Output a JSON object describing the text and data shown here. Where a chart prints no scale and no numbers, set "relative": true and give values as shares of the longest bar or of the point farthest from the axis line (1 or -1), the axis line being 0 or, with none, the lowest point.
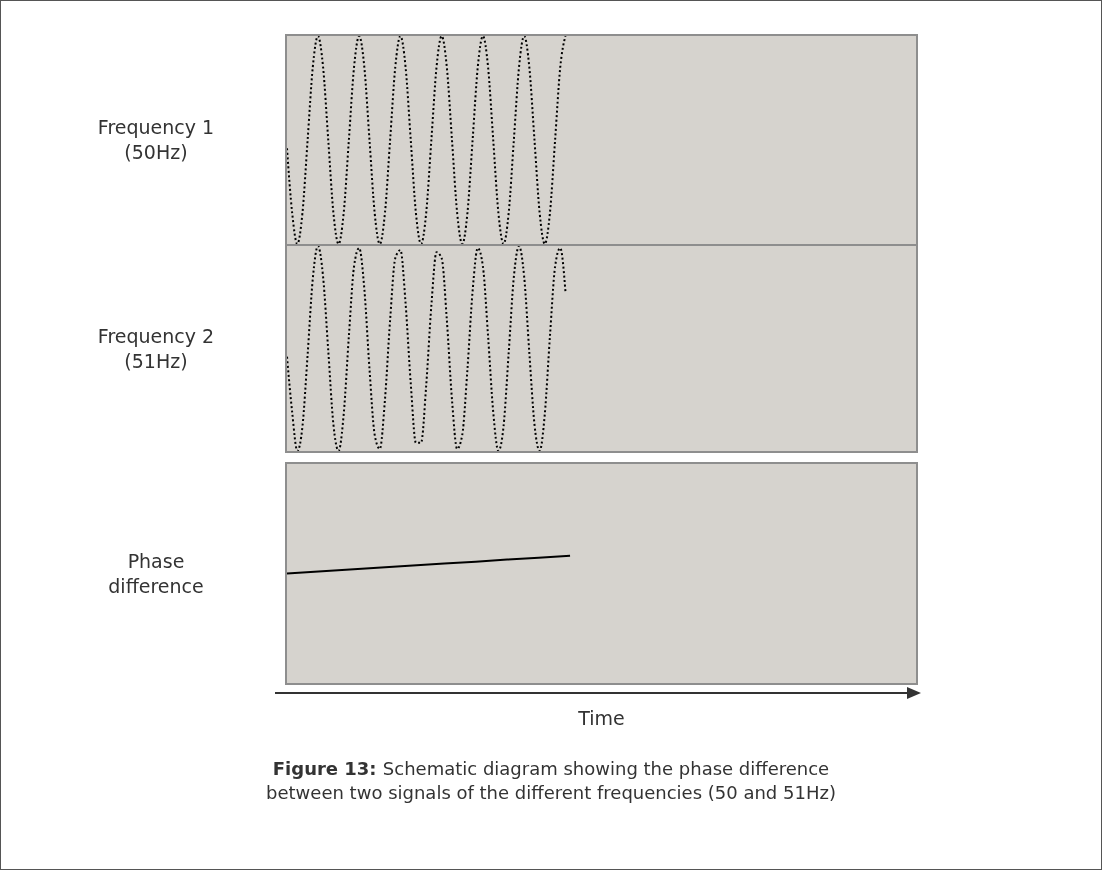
{
  "chart_data": [
    {
      "type": "line",
      "relative": true,
      "ylabel": "Frequency 1 (50Hz)",
      "color": "#000000",
      "line_style": "dotted",
      "categories": [
        null,
        null,
        null,
        null,
        null,
        null,
        null,
        null,
        null,
        null,
        null,
        null,
        null,
        null,
        null,
        null,
        null,
        null,
        null,
        null,
        null,
        null,
        null,
        null,
        null,
        null,
        null,
        null,
        null,
        null,
        null,
        null,
        null,
        null,
        null,
        null,
        null,
        null,
        null,
        null,
        null,
        null,
        null,
        null,
        null,
        null,
        null,
        null,
        null,
        null,
        null,
        null,
        null,
        null,
        null,
        null,
        null,
        null,
        null,
        null,
        null,
        null,
        null,
        null,
        null,
        null,
        null,
        null,
        null,
        null,
        null,
        null,
        null,
        null,
        null,
        null,
        null,
        null,
        null,
        null,
        null,
        null,
        null,
        null,
        null,
        null,
        null,
        null,
        null,
        null,
        null,
        null,
        null,
        null,
        null,
        null,
        null,
        null,
        null,
        null,
        null,
        null,
        null,
        null,
        null,
        null,
        null,
        null,
        null,
        null,
        null,
        null,
        null,
        null,
        null,
        null,
        null,
        null,
        null,
        null,
        null,
        null,
        null
      ],
      "values": [
        0.46,
        0.15,
        0,
        0.15,
        0.5,
        0.85,
        1,
        0.85,
        0.5,
        0.15,
        0,
        0.15,
        0.5,
        0.85,
        1,
        0.85,
        0.5,
        0.15,
        0,
        0.15,
        0.5,
        0.85,
        1,
        0.85,
        0.5,
        0.15,
        0,
        0.15,
        0.5,
        0.85,
        1,
        0.85,
        0.5,
        0.15,
        0,
        0.15,
        0.5,
        0.85,
        1,
        0.85,
        0.5,
        0.15,
        0,
        0.15,
        0.5,
        0.85,
        1,
        0.85,
        0.5,
        0.15,
        0,
        0.15,
        0.5,
        0.85,
        1,
        null,
        null,
        null,
        null,
        null,
        null,
        null,
        null,
        null,
        null,
        null,
        null,
        null,
        null,
        null,
        null,
        null,
        null,
        null,
        null,
        null,
        null,
        null,
        null,
        null,
        null,
        null,
        null,
        null,
        null,
        null,
        null,
        null,
        null,
        null,
        null,
        null,
        null,
        null,
        null,
        null,
        null,
        null,
        null,
        null,
        null,
        null,
        null,
        null,
        null,
        null,
        null,
        null,
        null,
        null,
        null,
        null,
        null,
        null,
        null,
        null,
        null,
        null,
        null,
        null,
        null,
        null,
        null
      ]
    },
    {
      "type": "line",
      "relative": true,
      "ylabel": "Frequency 2 (51Hz)",
      "color": "#000000",
      "line_style": "dotted",
      "categories": [
        null,
        null,
        null,
        null,
        null,
        null,
        null,
        null,
        null,
        null,
        null,
        null,
        null,
        null,
        null,
        null,
        null,
        null,
        null,
        null,
        null,
        null,
        null,
        null,
        null,
        null,
        null,
        null,
        null,
        null,
        null,
        null,
        null,
        null,
        null,
        null,
        null,
        null,
        null,
        null,
        null,
        null,
        null,
        null,
        null,
        null,
        null,
        null,
        null,
        null,
        null,
        null,
        null,
        null,
        null,
        null,
        null,
        null,
        null,
        null,
        null,
        null,
        null,
        null,
        null,
        null,
        null,
        null,
        null,
        null,
        null,
        null,
        null,
        null,
        null,
        null,
        null,
        null,
        null,
        null,
        null,
        null,
        null,
        null,
        null,
        null,
        null,
        null,
        null,
        null,
        null,
        null,
        null,
        null,
        null,
        null,
        null,
        null,
        null,
        null,
        null,
        null,
        null,
        null,
        null,
        null,
        null,
        null,
        null,
        null,
        null,
        null,
        null,
        null,
        null,
        null,
        null,
        null,
        null,
        null,
        null,
        null,
        null
      ],
      "values": [
        0.46,
        0.19,
        0,
        0.12,
        0.47,
        0.84,
        1,
        0.85,
        0.49,
        0.13,
        0,
        0.18,
        0.56,
        0.9,
        0.99,
        0.79,
        0.4,
        0.08,
        0.01,
        0.25,
        0.64,
        0.94,
        0.98,
        0.72,
        0.33,
        0.04,
        0.04,
        0.32,
        0.71,
        0.97,
        0.94,
        0.64,
        0.25,
        0.01,
        0.08,
        0.4,
        0.78,
        0.99,
        0.9,
        0.56,
        0.19,
        0,
        0.12,
        0.48,
        0.85,
        1,
        0.85,
        0.48,
        0.13,
        0,
        0.18,
        0.56,
        0.9,
        0.99,
        0.78,
        null,
        null,
        null,
        null,
        null,
        null,
        null,
        null,
        null,
        null,
        null,
        null,
        null,
        null,
        null,
        null,
        null,
        null,
        null,
        null,
        null,
        null,
        null,
        null,
        null,
        null,
        null,
        null,
        null,
        null,
        null,
        null,
        null,
        null,
        null,
        null,
        null,
        null,
        null,
        null,
        null,
        null,
        null,
        null,
        null,
        null,
        null,
        null,
        null,
        null,
        null,
        null,
        null,
        null,
        null,
        null,
        null,
        null,
        null,
        null,
        null,
        null,
        null,
        null,
        null,
        null,
        null,
        null
      ]
    },
    {
      "type": "line",
      "relative": true,
      "ylabel": "Phase difference",
      "xlabel": "Time",
      "color": "#000000",
      "line_style": "solid",
      "categories": [
        null,
        null,
        null,
        null,
        null,
        null,
        null,
        null,
        null,
        null,
        null,
        null,
        null,
        null,
        null,
        null,
        null,
        null,
        null,
        null,
        null
      ],
      "values": [
        0.86,
        0.876,
        0.891,
        0.907,
        0.922,
        0.938,
        0.953,
        0.969,
        0.984,
        1,
        null,
        null,
        null,
        null,
        null,
        null,
        null,
        null,
        null,
        null,
        null
      ],
      "annotations": [
        "Figure 13:",
        "Schematic diagram showing the phase difference between two signals of the different frequencies (50 and 51Hz)"
      ]
    }
  ]
}
